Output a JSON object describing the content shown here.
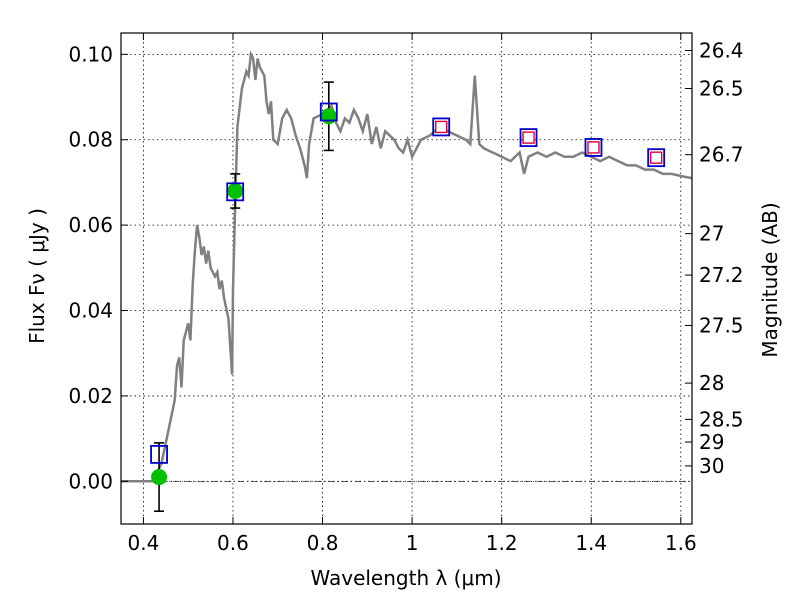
{
  "chart_data": {
    "type": "scatter",
    "title": "",
    "xlabel": "Wavelength  λ (μm)",
    "ylabel": "Flux  Fν  ( μJy )",
    "ylabel_right": "Magnitude (AB)",
    "xlim": [
      0.35,
      1.625
    ],
    "ylim": [
      -0.01,
      0.105
    ],
    "x_ticks": [
      0.4,
      0.6,
      0.8,
      1.0,
      1.2,
      1.4,
      1.6
    ],
    "x_tick_labels": [
      "0.4",
      "0.6",
      "0.8",
      "1",
      "1.2",
      "1.4",
      "1.6"
    ],
    "y_ticks": [
      0.0,
      0.02,
      0.04,
      0.06,
      0.08,
      0.1
    ],
    "y_tick_labels": [
      "0.00",
      "0.02",
      "0.04",
      "0.06",
      "0.08",
      "0.10"
    ],
    "right_ticks": [
      {
        "label": "26.4",
        "flux": 0.1009
      },
      {
        "label": "26.5",
        "flux": 0.092
      },
      {
        "label": "26.7",
        "flux": 0.0765
      },
      {
        "label": "27",
        "flux": 0.058
      },
      {
        "label": "27.2",
        "flux": 0.0483
      },
      {
        "label": "27.5",
        "flux": 0.0365
      },
      {
        "label": "28",
        "flux": 0.023
      },
      {
        "label": "28.5",
        "flux": 0.0145
      },
      {
        "label": "29",
        "flux": 0.0092
      },
      {
        "label": "30",
        "flux": 0.0036
      }
    ],
    "grid": true,
    "zero_line": true,
    "colors": {
      "model": "#808080",
      "observed": "#00c000",
      "model_box": "#0000cc",
      "predicted": "#dd0033",
      "error_bar": "#000000"
    },
    "series": [
      {
        "kind": "line",
        "points": [
          [
            0.35,
            0.0
          ],
          [
            0.4,
            0.0
          ],
          [
            0.42,
            0.0
          ],
          [
            0.44,
            0.004
          ],
          [
            0.46,
            0.014
          ],
          [
            0.47,
            0.019
          ],
          [
            0.475,
            0.027
          ],
          [
            0.48,
            0.029
          ],
          [
            0.485,
            0.022
          ],
          [
            0.49,
            0.033
          ],
          [
            0.5,
            0.037
          ],
          [
            0.505,
            0.033
          ],
          [
            0.51,
            0.046
          ],
          [
            0.515,
            0.054
          ],
          [
            0.52,
            0.06
          ],
          [
            0.525,
            0.057
          ],
          [
            0.53,
            0.053
          ],
          [
            0.535,
            0.055
          ],
          [
            0.54,
            0.051
          ],
          [
            0.545,
            0.054
          ],
          [
            0.55,
            0.05
          ],
          [
            0.56,
            0.048
          ],
          [
            0.565,
            0.049
          ],
          [
            0.57,
            0.045
          ],
          [
            0.575,
            0.047
          ],
          [
            0.58,
            0.043
          ],
          [
            0.59,
            0.038
          ],
          [
            0.595,
            0.03
          ],
          [
            0.598,
            0.025
          ],
          [
            0.6,
            0.045
          ],
          [
            0.605,
            0.065
          ],
          [
            0.61,
            0.083
          ],
          [
            0.62,
            0.092
          ],
          [
            0.63,
            0.096
          ],
          [
            0.635,
            0.095
          ],
          [
            0.64,
            0.1
          ],
          [
            0.645,
            0.099
          ],
          [
            0.65,
            0.094
          ],
          [
            0.655,
            0.099
          ],
          [
            0.66,
            0.097
          ],
          [
            0.67,
            0.095
          ],
          [
            0.675,
            0.089
          ],
          [
            0.68,
            0.086
          ],
          [
            0.685,
            0.089
          ],
          [
            0.69,
            0.08
          ],
          [
            0.7,
            0.079
          ],
          [
            0.71,
            0.085
          ],
          [
            0.72,
            0.087
          ],
          [
            0.73,
            0.085
          ],
          [
            0.74,
            0.081
          ],
          [
            0.75,
            0.078
          ],
          [
            0.76,
            0.074
          ],
          [
            0.765,
            0.071
          ],
          [
            0.77,
            0.079
          ],
          [
            0.78,
            0.085
          ],
          [
            0.8,
            0.086
          ],
          [
            0.82,
            0.088
          ],
          [
            0.83,
            0.084
          ],
          [
            0.84,
            0.082
          ],
          [
            0.85,
            0.085
          ],
          [
            0.86,
            0.084
          ],
          [
            0.87,
            0.087
          ],
          [
            0.88,
            0.085
          ],
          [
            0.89,
            0.082
          ],
          [
            0.9,
            0.086
          ],
          [
            0.91,
            0.079
          ],
          [
            0.92,
            0.083
          ],
          [
            0.93,
            0.078
          ],
          [
            0.94,
            0.082
          ],
          [
            0.95,
            0.081
          ],
          [
            0.96,
            0.08
          ],
          [
            0.97,
            0.078
          ],
          [
            0.98,
            0.077
          ],
          [
            0.99,
            0.08
          ],
          [
            1.0,
            0.076
          ],
          [
            1.02,
            0.08
          ],
          [
            1.04,
            0.081
          ],
          [
            1.06,
            0.083
          ],
          [
            1.08,
            0.082
          ],
          [
            1.1,
            0.081
          ],
          [
            1.12,
            0.08
          ],
          [
            1.13,
            0.079
          ],
          [
            1.14,
            0.095
          ],
          [
            1.15,
            0.079
          ],
          [
            1.16,
            0.078
          ],
          [
            1.18,
            0.077
          ],
          [
            1.2,
            0.076
          ],
          [
            1.22,
            0.075
          ],
          [
            1.24,
            0.077
          ],
          [
            1.25,
            0.072
          ],
          [
            1.26,
            0.076
          ],
          [
            1.28,
            0.077
          ],
          [
            1.3,
            0.076
          ],
          [
            1.32,
            0.077
          ],
          [
            1.34,
            0.076
          ],
          [
            1.36,
            0.076
          ],
          [
            1.38,
            0.077
          ],
          [
            1.4,
            0.076
          ],
          [
            1.42,
            0.075
          ],
          [
            1.44,
            0.076
          ],
          [
            1.46,
            0.075
          ],
          [
            1.48,
            0.074
          ],
          [
            1.5,
            0.074
          ],
          [
            1.52,
            0.073
          ],
          [
            1.54,
            0.073
          ],
          [
            1.56,
            0.072
          ],
          [
            1.58,
            0.072
          ],
          [
            1.6,
            0.0715
          ],
          [
            1.625,
            0.071
          ]
        ]
      },
      {
        "kind": "observed",
        "points": [
          {
            "x": 0.435,
            "y": 0.001,
            "err": 0.008
          },
          {
            "x": 0.605,
            "y": 0.068,
            "err": 0.004
          },
          {
            "x": 0.814,
            "y": 0.0855,
            "err": 0.008
          }
        ]
      },
      {
        "kind": "model-bandpass",
        "points": [
          {
            "x": 0.435,
            "y": 0.0063
          },
          {
            "x": 0.605,
            "y": 0.0678
          },
          {
            "x": 0.814,
            "y": 0.0865
          },
          {
            "x": 1.065,
            "y": 0.083
          },
          {
            "x": 1.26,
            "y": 0.0805
          },
          {
            "x": 1.405,
            "y": 0.0782
          },
          {
            "x": 1.545,
            "y": 0.0758
          }
        ]
      },
      {
        "kind": "predicted",
        "points": [
          {
            "x": 1.065,
            "y": 0.083
          },
          {
            "x": 1.26,
            "y": 0.0805
          },
          {
            "x": 1.405,
            "y": 0.0782
          },
          {
            "x": 1.545,
            "y": 0.0758
          }
        ]
      }
    ]
  }
}
